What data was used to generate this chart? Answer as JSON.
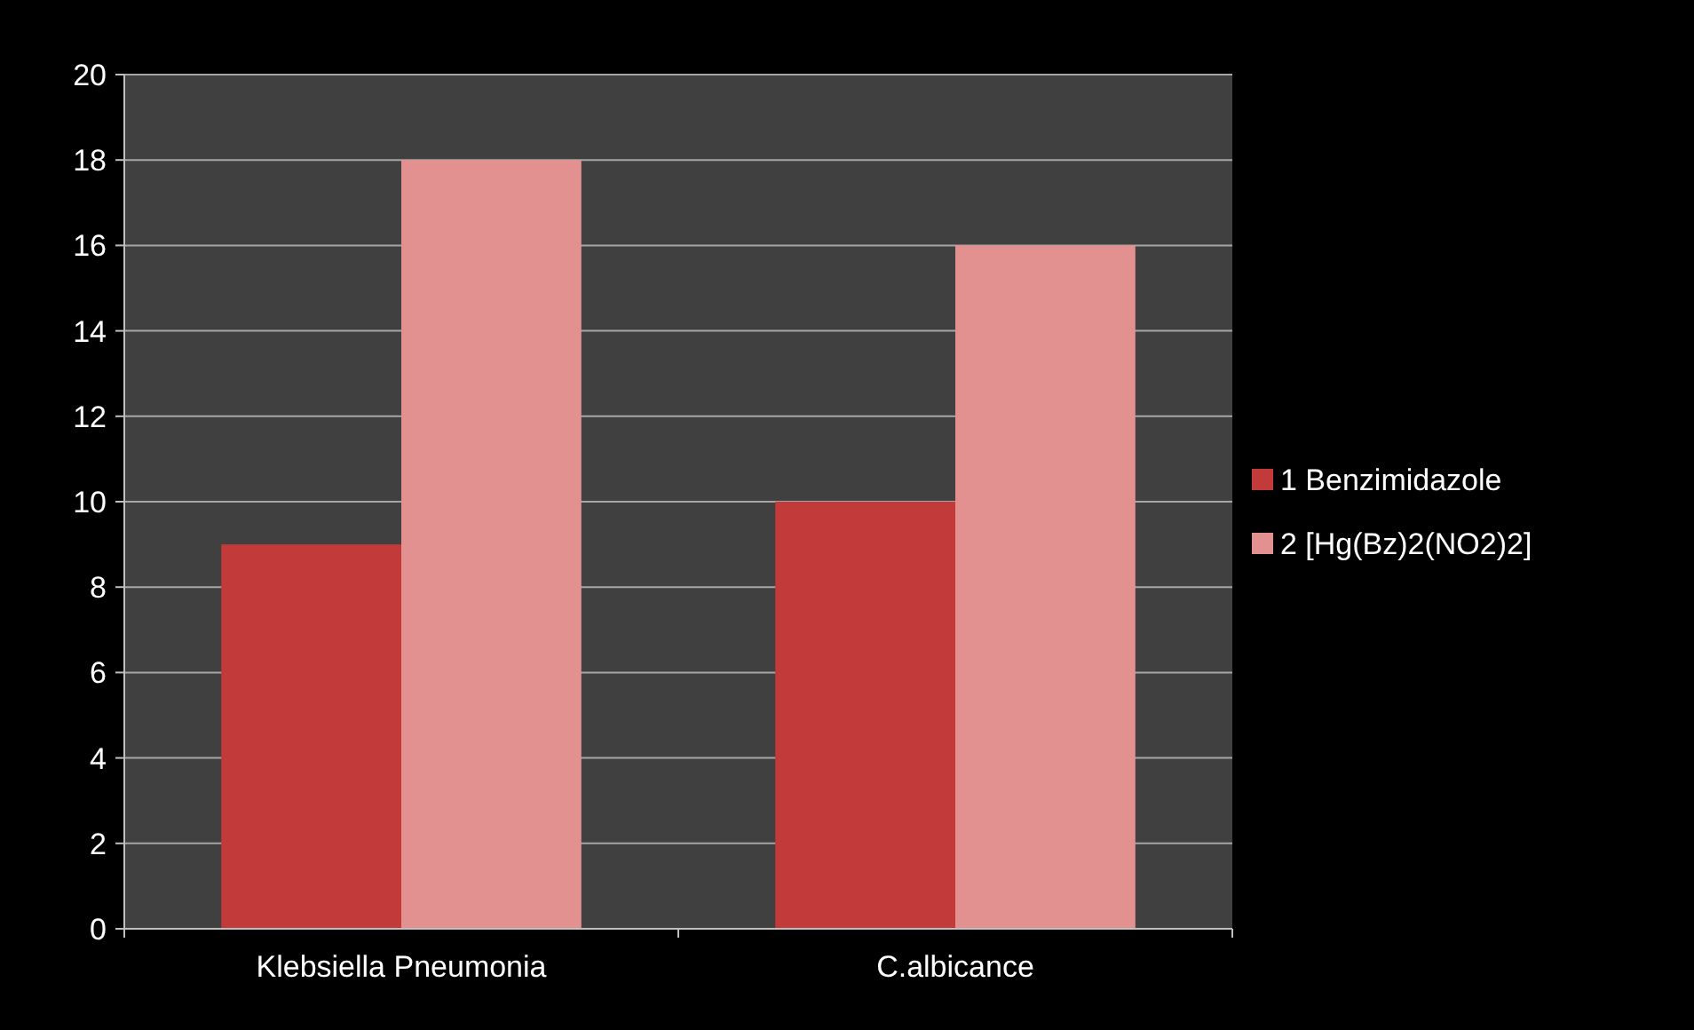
{
  "chart_data": {
    "type": "bar",
    "categories": [
      "Klebsiella Pneumonia",
      "C.albicance"
    ],
    "series": [
      {
        "name": "1 Benzimidazole",
        "color": "#c33a3a",
        "values": [
          9,
          10
        ]
      },
      {
        "name": "2 [Hg(Bz)2(NO2)2]",
        "color": "#e39090",
        "values": [
          18,
          16
        ]
      }
    ],
    "ylim": [
      0,
      20
    ],
    "yticks": [
      0,
      2,
      4,
      6,
      8,
      10,
      12,
      14,
      16,
      18,
      20
    ],
    "grid": "y",
    "legend": "right"
  }
}
